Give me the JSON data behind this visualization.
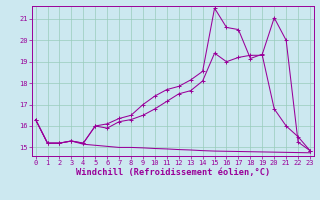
{
  "xlabel": "Windchill (Refroidissement éolien,°C)",
  "bg_color": "#cce8f0",
  "line_color": "#990099",
  "grid_color": "#99ccbb",
  "x_ticks": [
    0,
    1,
    2,
    3,
    4,
    5,
    6,
    7,
    8,
    9,
    10,
    11,
    12,
    13,
    14,
    15,
    16,
    17,
    18,
    19,
    20,
    21,
    22,
    23
  ],
  "y_ticks": [
    15,
    16,
    17,
    18,
    19,
    20,
    21
  ],
  "ylim": [
    14.6,
    21.6
  ],
  "xlim": [
    -0.3,
    23.3
  ],
  "line1_x": [
    0,
    1,
    2,
    3,
    4,
    5,
    6,
    7,
    8,
    9,
    10,
    11,
    12,
    13,
    14,
    15,
    16,
    17,
    18,
    19,
    20,
    21,
    22,
    23
  ],
  "line1_y": [
    16.3,
    15.2,
    15.2,
    15.3,
    15.2,
    16.0,
    15.9,
    16.2,
    16.3,
    16.5,
    16.8,
    17.15,
    17.5,
    17.65,
    18.1,
    19.4,
    19.0,
    19.2,
    19.3,
    19.3,
    16.8,
    16.0,
    15.5,
    14.85
  ],
  "line2_x": [
    0,
    1,
    2,
    3,
    4,
    5,
    6,
    7,
    8,
    9,
    10,
    11,
    12,
    13,
    14,
    15,
    16,
    17,
    18,
    19,
    20,
    21,
    22,
    23
  ],
  "line2_y": [
    16.3,
    15.2,
    15.2,
    15.3,
    15.15,
    15.1,
    15.05,
    15.0,
    15.0,
    14.98,
    14.95,
    14.93,
    14.9,
    14.88,
    14.85,
    14.83,
    14.82,
    14.81,
    14.8,
    14.79,
    14.78,
    14.77,
    14.76,
    14.75
  ],
  "line3_x": [
    0,
    1,
    2,
    3,
    4,
    5,
    6,
    7,
    8,
    9,
    10,
    11,
    12,
    13,
    14,
    15,
    16,
    17,
    18,
    19,
    20,
    21,
    22,
    23
  ],
  "line3_y": [
    16.3,
    15.2,
    15.2,
    15.3,
    15.2,
    16.0,
    16.1,
    16.35,
    16.5,
    17.0,
    17.4,
    17.7,
    17.85,
    18.15,
    18.55,
    21.5,
    20.6,
    20.5,
    19.15,
    19.35,
    21.05,
    20.0,
    15.25,
    14.85
  ],
  "tick_fontsize": 5.0,
  "xlabel_fontsize": 6.2
}
